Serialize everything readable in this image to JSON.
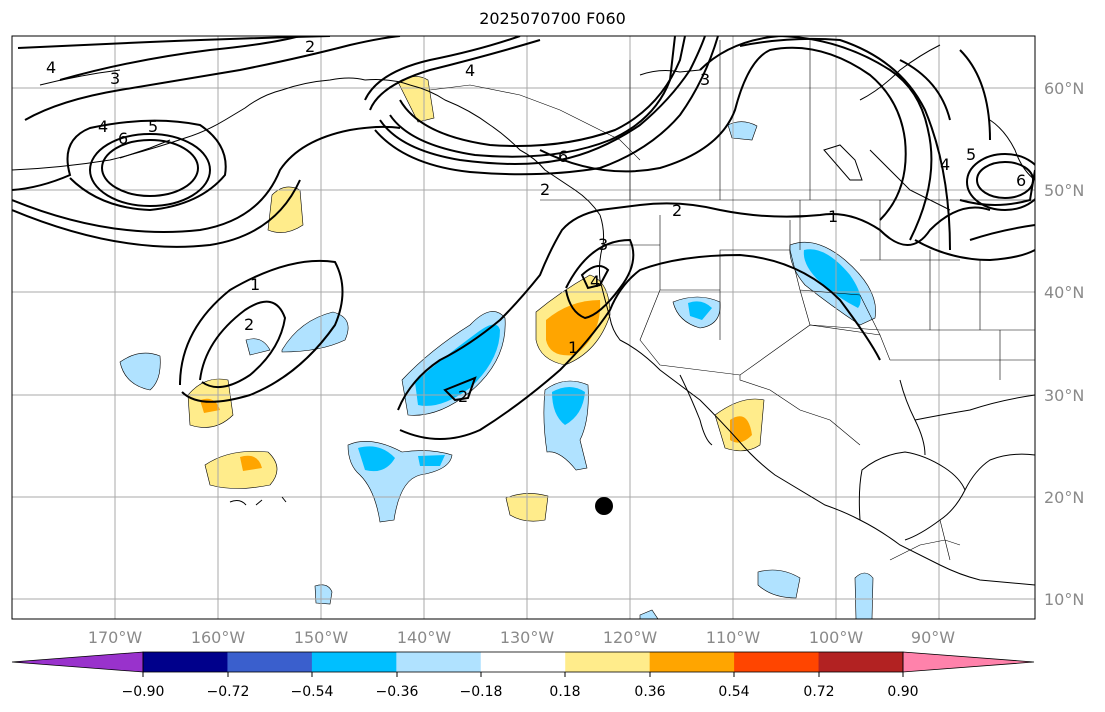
{
  "title": "2025070700 F060",
  "map": {
    "lon_labels": [
      "170°W",
      "160°W",
      "150°W",
      "140°W",
      "130°W",
      "120°W",
      "110°W",
      "100°W",
      "90°W"
    ],
    "lat_labels": [
      "60°N",
      "50°N",
      "40°N",
      "30°N",
      "20°N",
      "10°N"
    ],
    "contour_labels": [
      "1",
      "2",
      "3",
      "4",
      "5",
      "6"
    ],
    "marker": "black-dot"
  },
  "colorbar": {
    "ticks": [
      "−0.90",
      "−0.72",
      "−0.54",
      "−0.36",
      "−0.18",
      "0.18",
      "0.36",
      "0.54",
      "0.72",
      "0.90"
    ],
    "colors": [
      "#9932cc",
      "#00008b",
      "#3a5fcd",
      "#00bfff",
      "#b0e2ff",
      "#ffffff",
      "#ffec8b",
      "#ffa500",
      "#ff4500",
      "#b22222",
      "#ff82ab"
    ]
  }
}
